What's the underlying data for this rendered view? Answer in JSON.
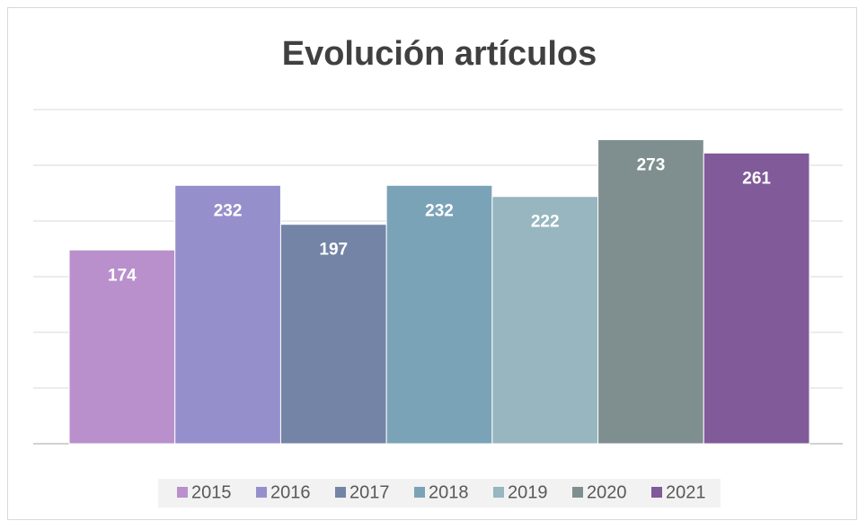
{
  "chart_data": {
    "type": "bar",
    "title": "Evolución artículos",
    "series": [
      {
        "name": "2015",
        "color": "#b990cc",
        "values": [
          174
        ]
      },
      {
        "name": "2016",
        "color": "#9590cc",
        "values": [
          232
        ]
      },
      {
        "name": "2017",
        "color": "#7384a6",
        "values": [
          197
        ]
      },
      {
        "name": "2018",
        "color": "#7ba3b8",
        "values": [
          232
        ]
      },
      {
        "name": "2019",
        "color": "#97b6bf",
        "values": [
          222
        ]
      },
      {
        "name": "2020",
        "color": "#7f8f8f",
        "values": [
          273
        ]
      },
      {
        "name": "2021",
        "color": "#805a99",
        "values": [
          261
        ]
      }
    ],
    "ylim": [
      0,
      300
    ],
    "yticks": [
      0,
      50,
      100,
      150,
      200,
      250,
      300
    ],
    "grid": true
  }
}
